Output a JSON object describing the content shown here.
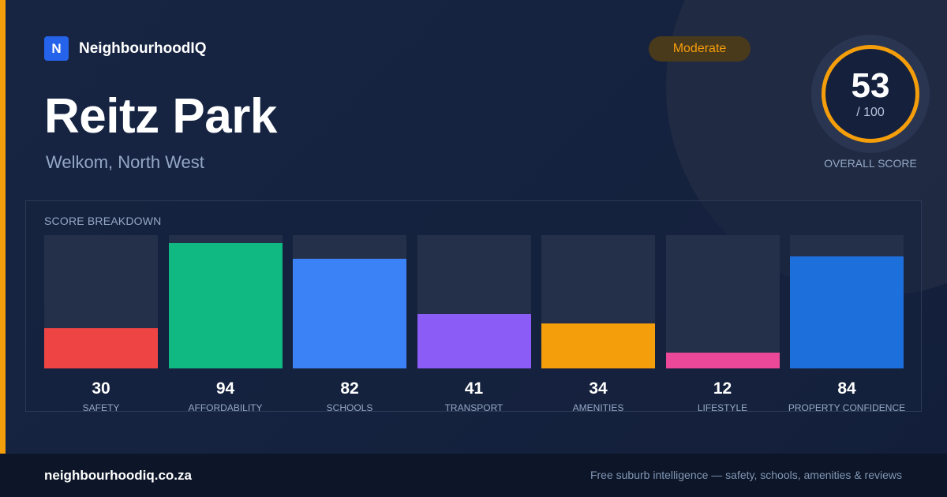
{
  "brand": {
    "logo_letter": "N",
    "name": "NeighbourhoodIQ"
  },
  "suburb": {
    "name": "Reitz Park",
    "location": "Welkom, North West"
  },
  "rating_badge": "Moderate",
  "overall": {
    "score": "53",
    "max": "/ 100",
    "label": "OVERALL SCORE"
  },
  "colors": {
    "accent": "#f59e0b",
    "background": "#14213d"
  },
  "breakdown": {
    "title": "SCORE BREAKDOWN",
    "chart_data": {
      "type": "bar",
      "ylim": [
        0,
        100
      ],
      "categories": [
        "SAFETY",
        "AFFORDABILITY",
        "SCHOOLS",
        "TRANSPORT",
        "AMENITIES",
        "LIFESTYLE",
        "PROPERTY CONFIDENCE"
      ],
      "values": [
        30,
        94,
        82,
        41,
        34,
        12,
        84
      ],
      "colors": [
        "#ef4444",
        "#10b981",
        "#3b82f6",
        "#8b5cf6",
        "#f59e0b",
        "#ec4899",
        "#1d6fdb"
      ]
    }
  },
  "footer": {
    "url": "neighbourhoodiq.co.za",
    "tagline": "Free suburb intelligence — safety, schools, amenities & reviews"
  }
}
